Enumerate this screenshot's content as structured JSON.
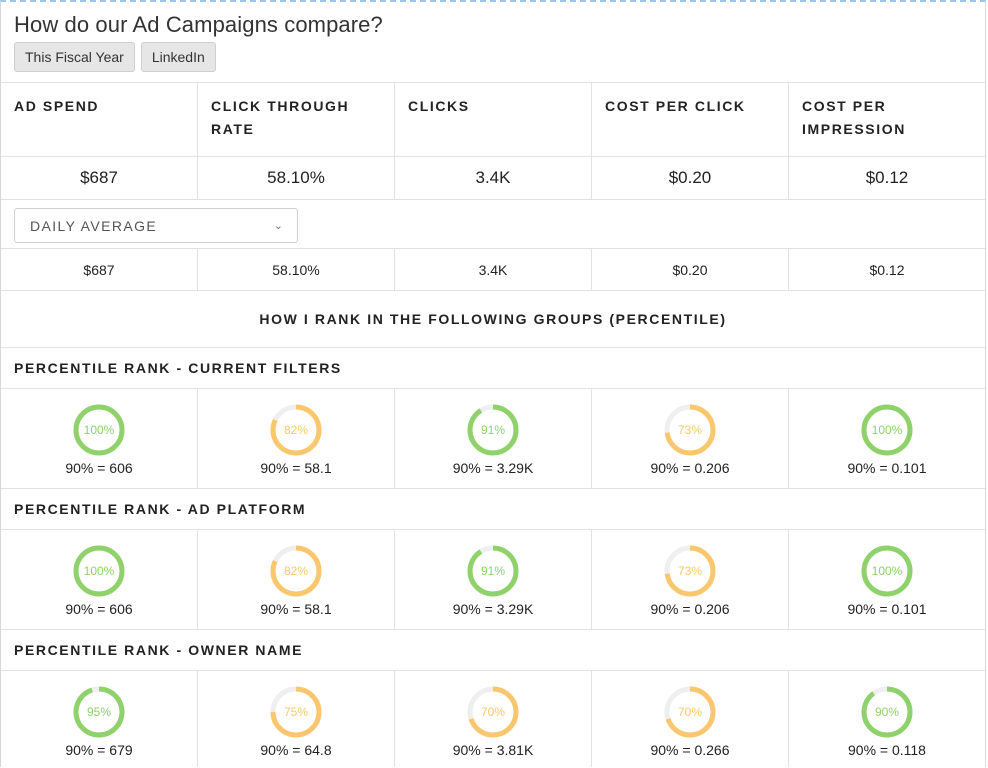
{
  "title": "How do our Ad Campaigns compare?",
  "filters": [
    "This Fiscal Year",
    "LinkedIn"
  ],
  "columns": [
    "AD SPEND",
    "CLICK THROUGH RATE",
    "CLICKS",
    "COST PER CLICK",
    "COST PER IMPRESSION"
  ],
  "totals": [
    "$687",
    "58.10%",
    "3.4K",
    "$0.20",
    "$0.12"
  ],
  "average_select": {
    "label": "DAILY AVERAGE"
  },
  "averages": [
    "$687",
    "58.10%",
    "3.4K",
    "$0.20",
    "$0.12"
  ],
  "rank_title": "HOW I RANK IN THE FOLLOWING GROUPS (PERCENTILE)",
  "colors": {
    "green": "#8fd16a",
    "orange": "#fbc76e",
    "track": "#efefef"
  },
  "groups": [
    {
      "label": "PERCENTILE RANK - CURRENT FILTERS",
      "items": [
        {
          "percent": 100,
          "label": "100%",
          "caption": "90% = 606",
          "color": "green"
        },
        {
          "percent": 82,
          "label": "82%",
          "caption": "90% = 58.1",
          "color": "orange"
        },
        {
          "percent": 91,
          "label": "91%",
          "caption": "90% = 3.29K",
          "color": "green"
        },
        {
          "percent": 73,
          "label": "73%",
          "caption": "90% = 0.206",
          "color": "orange"
        },
        {
          "percent": 100,
          "label": "100%",
          "caption": "90% = 0.101",
          "color": "green"
        }
      ]
    },
    {
      "label": "PERCENTILE RANK - AD PLATFORM",
      "items": [
        {
          "percent": 100,
          "label": "100%",
          "caption": "90% = 606",
          "color": "green"
        },
        {
          "percent": 82,
          "label": "82%",
          "caption": "90% = 58.1",
          "color": "orange"
        },
        {
          "percent": 91,
          "label": "91%",
          "caption": "90% = 3.29K",
          "color": "green"
        },
        {
          "percent": 73,
          "label": "73%",
          "caption": "90% = 0.206",
          "color": "orange"
        },
        {
          "percent": 100,
          "label": "100%",
          "caption": "90% = 0.101",
          "color": "green"
        }
      ]
    },
    {
      "label": "PERCENTILE RANK - OWNER NAME",
      "items": [
        {
          "percent": 95,
          "label": "95%",
          "caption": "90% = 679",
          "color": "green"
        },
        {
          "percent": 75,
          "label": "75%",
          "caption": "90% = 64.8",
          "color": "orange"
        },
        {
          "percent": 70,
          "label": "70%",
          "caption": "90% = 3.81K",
          "color": "orange"
        },
        {
          "percent": 70,
          "label": "70%",
          "caption": "90% = 0.266",
          "color": "orange"
        },
        {
          "percent": 90,
          "label": "90%",
          "caption": "90% = 0.118",
          "color": "green"
        }
      ]
    }
  ]
}
